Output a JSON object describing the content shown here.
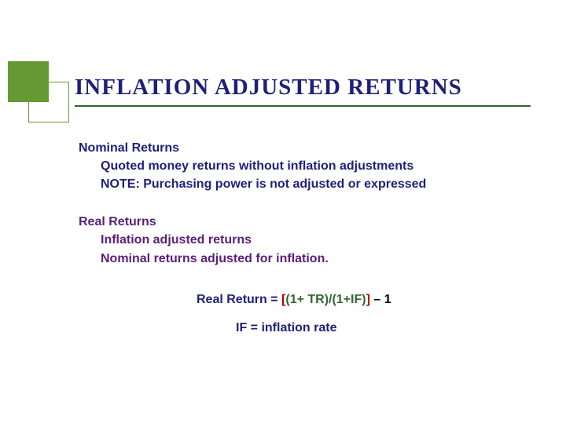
{
  "colors": {
    "navy": "#1f1f7a",
    "purple": "#5a1f7a",
    "green": "#336633",
    "red": "#b40000",
    "accent_square": "#669933",
    "background": "#ffffff"
  },
  "typography": {
    "title_fontsize": 29,
    "body_fontsize": 16,
    "title_font": "Wide Latin / Copperplate style serif",
    "body_font": "Verdana"
  },
  "title": "INFLATION ADJUSTED RETURNS",
  "section1": {
    "heading": "Nominal Returns",
    "line1": "Quoted money returns without inflation adjustments",
    "line2": "NOTE:  Purchasing power is not adjusted or expressed"
  },
  "section2": {
    "heading": "Real Returns",
    "line1": "Inflation adjusted returns",
    "line2": "Nominal returns adjusted for inflation."
  },
  "formula": {
    "lhs": "Real  Return = ",
    "open_bracket": "[",
    "numer": "(1+ TR)/(1+IF)",
    "close_bracket": "]",
    "tail": " – 1"
  },
  "formula_note": "IF = inflation rate"
}
